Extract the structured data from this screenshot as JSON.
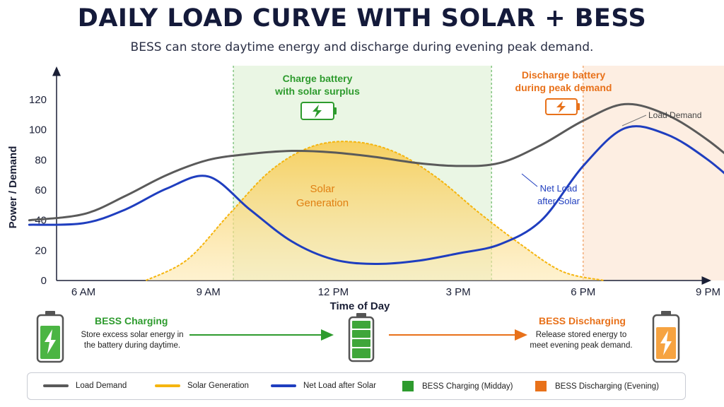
{
  "title": "DAILY LOAD CURVE WITH SOLAR + BESS",
  "subtitle": "BESS can store daytime energy and discharge during evening peak demand.",
  "colors": {
    "load": "#5a5a5a",
    "solar": "#f5b50f",
    "net": "#1f3ebf",
    "charge": "#2e9b2e",
    "discharge": "#e8711a"
  },
  "chart_data": {
    "type": "line",
    "xlabel": "Time of Day",
    "ylabel": "Power / Demand",
    "ylim": [
      0,
      130
    ],
    "y_ticks": [
      0,
      20,
      40,
      60,
      80,
      100,
      120
    ],
    "x_ticks": [
      {
        "hour": 6,
        "label": "6 AM"
      },
      {
        "hour": 9,
        "label": "9 AM"
      },
      {
        "hour": 12,
        "label": "12 PM"
      },
      {
        "hour": 15,
        "label": "3 PM"
      },
      {
        "hour": 18,
        "label": "6 PM"
      },
      {
        "hour": 21,
        "label": "9 PM"
      }
    ],
    "series": [
      {
        "name": "Load Demand",
        "color": "#5a5a5a",
        "x": [
          4.7,
          6,
          7,
          8,
          9,
          10,
          11,
          12,
          13,
          14,
          15,
          16,
          17,
          18,
          19,
          20,
          21,
          22,
          23
        ],
        "y": [
          40,
          44,
          56,
          70,
          80,
          84,
          86,
          85,
          82,
          78,
          76,
          78,
          90,
          106,
          117,
          110,
          93,
          70,
          45
        ]
      },
      {
        "name": "Solar Generation",
        "color": "#f5b50f",
        "x": [
          7.5,
          8.5,
          9.5,
          10.5,
          11.5,
          12.5,
          13.5,
          14.5,
          15.5,
          16.5,
          17.5,
          18.5
        ],
        "y": [
          0,
          14,
          44,
          73,
          89,
          92,
          85,
          68,
          45,
          24,
          6,
          0
        ]
      },
      {
        "name": "Net Load after Solar",
        "color": "#1f3ebf",
        "x": [
          4.7,
          6,
          7,
          8,
          9,
          10,
          11,
          12,
          13,
          14,
          15,
          16,
          17,
          18,
          19,
          20,
          21,
          22,
          23
        ],
        "y": [
          37,
          38,
          47,
          61,
          69,
          47,
          26,
          14,
          11,
          13,
          18,
          24,
          40,
          76,
          101,
          97,
          80,
          57,
          38
        ]
      }
    ],
    "regions": [
      {
        "name": "BESS Charging (Midday)",
        "x": [
          9.6,
          15.8
        ],
        "color": "#2e9b2e"
      },
      {
        "name": "BESS Discharging (Evening)",
        "x": [
          18,
          22
        ],
        "color": "#e8711a"
      }
    ],
    "annotations": {
      "charge": "Charge battery with solar surplus",
      "discharge": "Discharge battery during peak demand",
      "solar": "Solar Generation",
      "net": "Net Load after Solar",
      "load": "Load Demand"
    }
  },
  "flow": {
    "charging_title": "BESS Charging",
    "charging_desc": "Store excess solar energy in the battery during daytime.",
    "discharging_title": "BESS Discharging",
    "discharging_desc": "Release stored energy to meet evening peak demand."
  },
  "legend": [
    {
      "label": "Load Demand",
      "kind": "line",
      "color": "#5a5a5a"
    },
    {
      "label": "Solar Generation",
      "kind": "line",
      "color": "#f5b50f"
    },
    {
      "label": "Net Load after Solar",
      "kind": "line",
      "color": "#1f3ebf"
    },
    {
      "label": "BESS Charging (Midday)",
      "kind": "swatch",
      "color": "#2e9b2e"
    },
    {
      "label": "BESS Discharging (Evening)",
      "kind": "swatch",
      "color": "#e8711a"
    }
  ]
}
